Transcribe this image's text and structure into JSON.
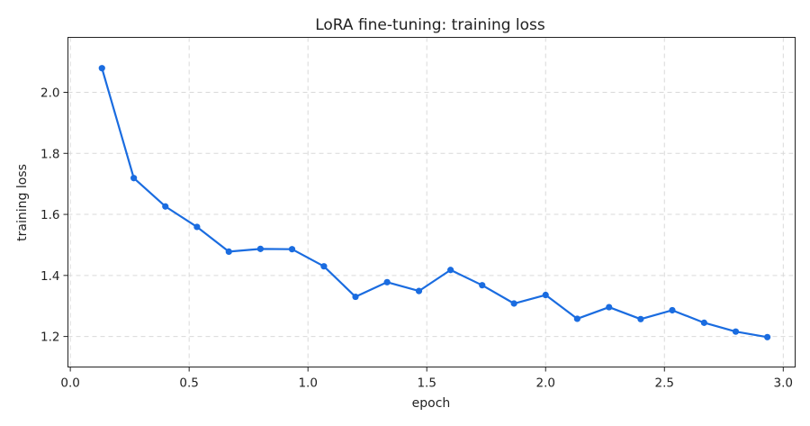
{
  "chart_data": {
    "type": "line",
    "title": "LoRA fine-tuning: training loss",
    "xlabel": "epoch",
    "ylabel": "training loss",
    "xlim": [
      -0.01,
      3.05
    ],
    "ylim": [
      1.1,
      2.18
    ],
    "xticks": [
      0.0,
      0.5,
      1.0,
      1.5,
      2.0,
      2.5,
      3.0
    ],
    "xtick_labels": [
      "0.0",
      "0.5",
      "1.0",
      "1.5",
      "2.0",
      "2.5",
      "3.0"
    ],
    "yticks": [
      1.2,
      1.4,
      1.6,
      1.8,
      2.0
    ],
    "ytick_labels": [
      "1.2",
      "1.4",
      "1.6",
      "1.8",
      "2.0"
    ],
    "grid": true,
    "series": [
      {
        "color": "#1a6ce0",
        "marker": "circle",
        "x": [
          0.133,
          0.267,
          0.4,
          0.533,
          0.667,
          0.8,
          0.933,
          1.067,
          1.2,
          1.333,
          1.467,
          1.6,
          1.733,
          1.867,
          2.0,
          2.133,
          2.267,
          2.4,
          2.533,
          2.667,
          2.8,
          2.933
        ],
        "y": [
          2.079,
          1.719,
          1.626,
          1.559,
          1.478,
          1.487,
          1.486,
          1.43,
          1.33,
          1.378,
          1.349,
          1.418,
          1.368,
          1.308,
          1.336,
          1.258,
          1.296,
          1.257,
          1.286,
          1.245,
          1.216,
          1.198
        ]
      }
    ]
  }
}
